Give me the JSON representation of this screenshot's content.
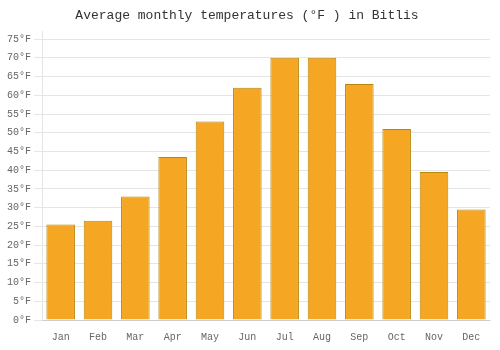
{
  "chart_data": {
    "type": "bar",
    "title": "Average monthly temperatures (°F ) in Bitlis",
    "categories": [
      "Jan",
      "Feb",
      "Mar",
      "Apr",
      "May",
      "Jun",
      "Jul",
      "Aug",
      "Sep",
      "Oct",
      "Nov",
      "Dec"
    ],
    "values": [
      25.5,
      26.5,
      33,
      43.5,
      53,
      62,
      70,
      70,
      63,
      51,
      39.5,
      29.5
    ],
    "color": "#F5A623",
    "ylim": [
      0,
      77
    ],
    "yticks": [
      {
        "value": 0,
        "label": "0°F"
      },
      {
        "value": 5,
        "label": "5°F"
      },
      {
        "value": 10,
        "label": "10°F"
      },
      {
        "value": 15,
        "label": "15°F"
      },
      {
        "value": 20,
        "label": "20°F"
      },
      {
        "value": 25,
        "label": "25°F"
      },
      {
        "value": 30,
        "label": "30°F"
      },
      {
        "value": 35,
        "label": "35°F"
      },
      {
        "value": 40,
        "label": "40°F"
      },
      {
        "value": 45,
        "label": "45°F"
      },
      {
        "value": 50,
        "label": "50°F"
      },
      {
        "value": 55,
        "label": "55°F"
      },
      {
        "value": 60,
        "label": "60°F"
      },
      {
        "value": 65,
        "label": "65°F"
      },
      {
        "value": 70,
        "label": "70°F"
      },
      {
        "value": 75,
        "label": "75°F"
      }
    ],
    "grid": true
  }
}
